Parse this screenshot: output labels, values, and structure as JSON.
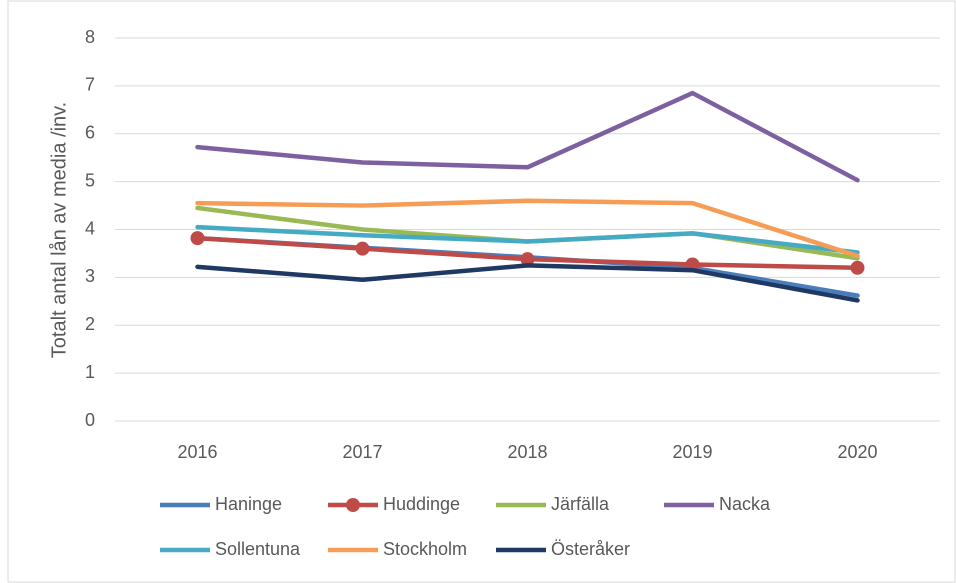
{
  "chart_data": {
    "type": "line",
    "ylabel": "Totalt antal lån av media /inv.",
    "categories": [
      "2016",
      "2017",
      "2018",
      "2019",
      "2020"
    ],
    "series": [
      {
        "name": "Haninge",
        "color": "#4a7ebb",
        "values": [
          3.82,
          3.62,
          3.42,
          3.2,
          2.62
        ]
      },
      {
        "name": "Huddinge",
        "color": "#be4b48",
        "marker": true,
        "values": [
          3.82,
          3.6,
          3.38,
          3.27,
          3.2
        ]
      },
      {
        "name": "Järfälla",
        "color": "#98b954",
        "values": [
          4.45,
          4.0,
          3.75,
          3.92,
          3.4
        ]
      },
      {
        "name": "Nacka",
        "color": "#7d60a0",
        "values": [
          5.72,
          5.4,
          5.3,
          6.85,
          5.03
        ]
      },
      {
        "name": "Sollentuna",
        "color": "#46aac5",
        "values": [
          4.05,
          3.88,
          3.75,
          3.92,
          3.52
        ]
      },
      {
        "name": "Stockholm",
        "color": "#f59d56",
        "values": [
          4.55,
          4.5,
          4.6,
          4.55,
          3.45
        ]
      },
      {
        "name": "Österåker",
        "color": "#1f3864",
        "values": [
          3.22,
          2.95,
          3.25,
          3.15,
          2.52
        ]
      }
    ],
    "ylim": [
      0,
      8
    ],
    "yticks": [
      0,
      1,
      2,
      3,
      4,
      5,
      6,
      7,
      8
    ],
    "grid": true,
    "legend": "bottom"
  }
}
